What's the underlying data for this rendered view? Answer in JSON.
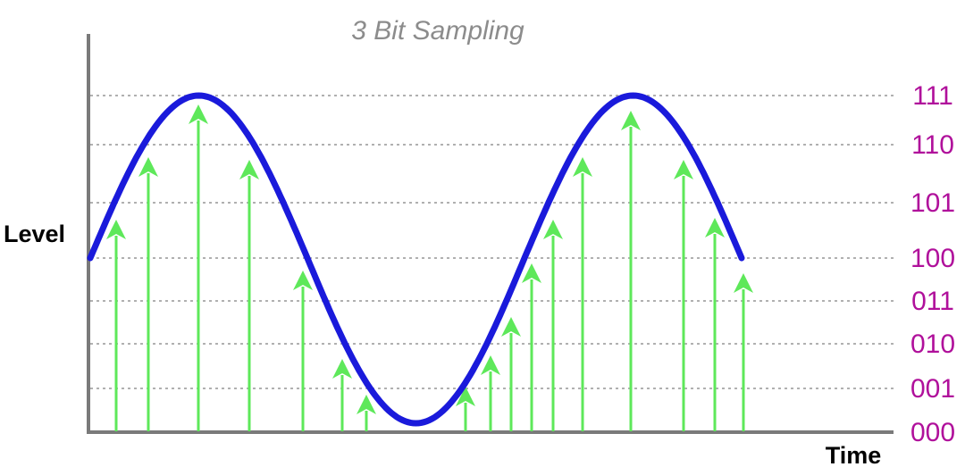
{
  "title": "3 Bit Sampling",
  "y_axis_label": "Level",
  "x_axis_label": "Time",
  "level_codes": [
    "000",
    "001",
    "010",
    "011",
    "100",
    "101",
    "110",
    "111"
  ],
  "colors": {
    "title": "#8c8c8c",
    "axis": "#7a7a7a",
    "gridline": "#b0b0b0",
    "wave": "#1a1adb",
    "sample_arrow": "#5ee85a",
    "level_code": "#b0109b",
    "axis_label": "#000000"
  },
  "chart_data": {
    "type": "line",
    "title": "3 Bit Sampling",
    "xlabel": "Time",
    "ylabel": "Level",
    "quantization_bits": 3,
    "y_levels": [
      "000",
      "001",
      "010",
      "011",
      "100",
      "101",
      "110",
      "111"
    ],
    "y_range": [
      0,
      7
    ],
    "signal": {
      "shape": "sine",
      "cycles": 1.5,
      "offset_level": 3.5,
      "amplitude_levels": 3.5
    },
    "samples": [
      {
        "level": "100"
      },
      {
        "level": "110"
      },
      {
        "level": "111"
      },
      {
        "level": "110"
      },
      {
        "level": "011"
      },
      {
        "level": "001"
      },
      {
        "level": "000"
      },
      {
        "level": "000"
      },
      {
        "level": "001"
      },
      {
        "level": "010"
      },
      {
        "level": "011"
      },
      {
        "level": "100"
      },
      {
        "level": "100"
      },
      {
        "level": "110"
      },
      {
        "level": "111"
      },
      {
        "level": "110"
      },
      {
        "level": "100"
      },
      {
        "level": "011"
      }
    ],
    "grid": true
  }
}
